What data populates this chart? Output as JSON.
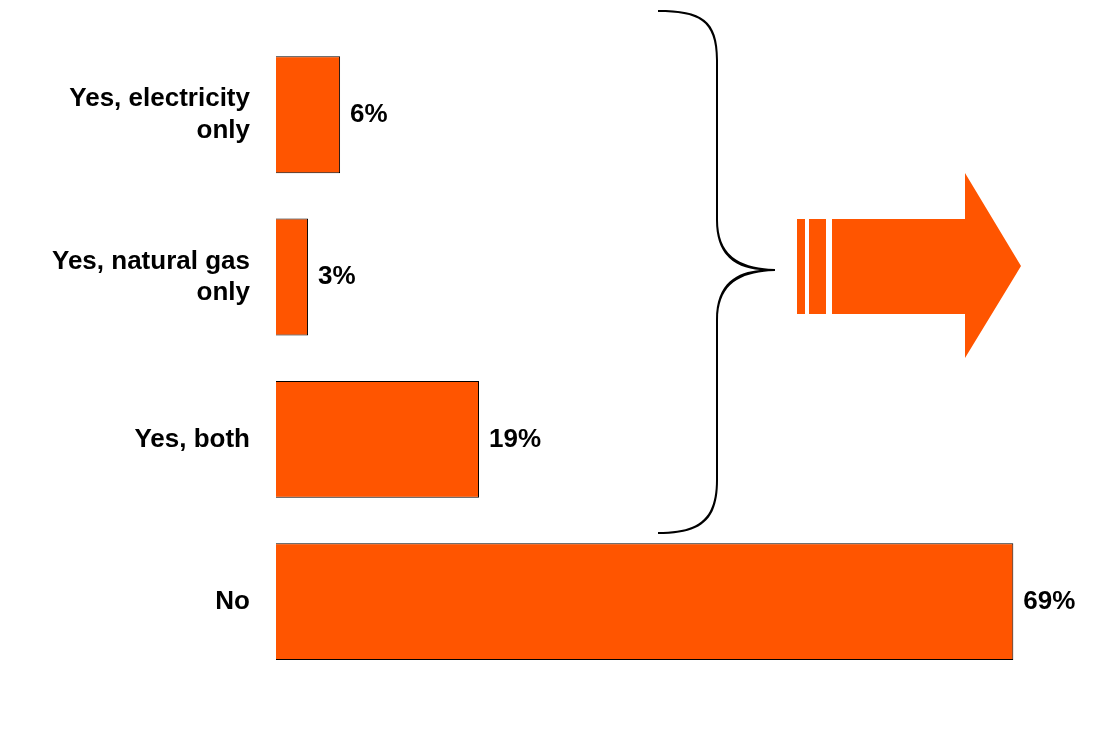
{
  "chart_data": {
    "type": "bar",
    "orientation": "horizontal",
    "categories": [
      "Yes, electricity only",
      "Yes, natural gas only",
      "Yes, both",
      "No"
    ],
    "values": [
      6,
      3,
      19,
      69
    ],
    "color": "#ff5500",
    "value_labels": [
      "6%",
      "3%",
      "19%",
      "69%"
    ]
  }
}
